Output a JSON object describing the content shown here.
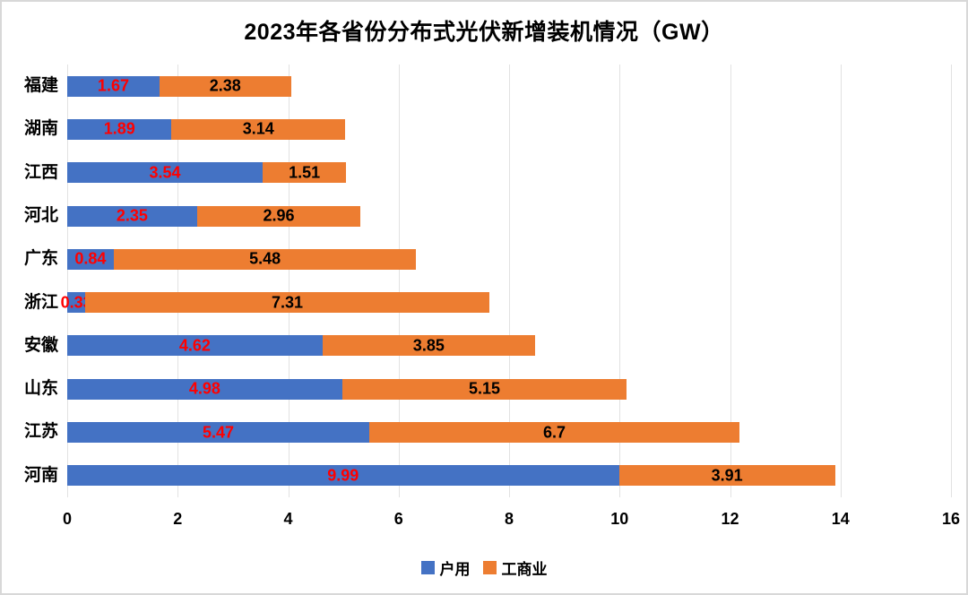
{
  "chart_data": {
    "type": "bar",
    "orientation": "horizontal",
    "stacked": true,
    "title": "2023年各省份分布式光伏新增装机情况（GW）",
    "categories": [
      "福建",
      "湖南",
      "江西",
      "河北",
      "广东",
      "浙江",
      "安徽",
      "山东",
      "江苏",
      "河南"
    ],
    "series": [
      {
        "name": "户用",
        "color": "#4472C4",
        "label_color": "#FF0000",
        "values": [
          1.67,
          1.89,
          3.54,
          2.35,
          0.84,
          0.33,
          4.62,
          4.98,
          5.47,
          9.99
        ]
      },
      {
        "name": "工商业",
        "color": "#ED7D31",
        "label_color": "#000000",
        "values": [
          2.38,
          3.14,
          1.51,
          2.96,
          5.48,
          7.31,
          3.85,
          5.15,
          6.7,
          3.91
        ]
      }
    ],
    "x_ticks": [
      0,
      2,
      4,
      6,
      8,
      10,
      12,
      14,
      16
    ],
    "xlim": [
      0,
      16
    ],
    "grid": "vertical",
    "gridline_color": "#E2E2E2",
    "background_color": "#FFFFFF",
    "legend_position": "bottom"
  }
}
